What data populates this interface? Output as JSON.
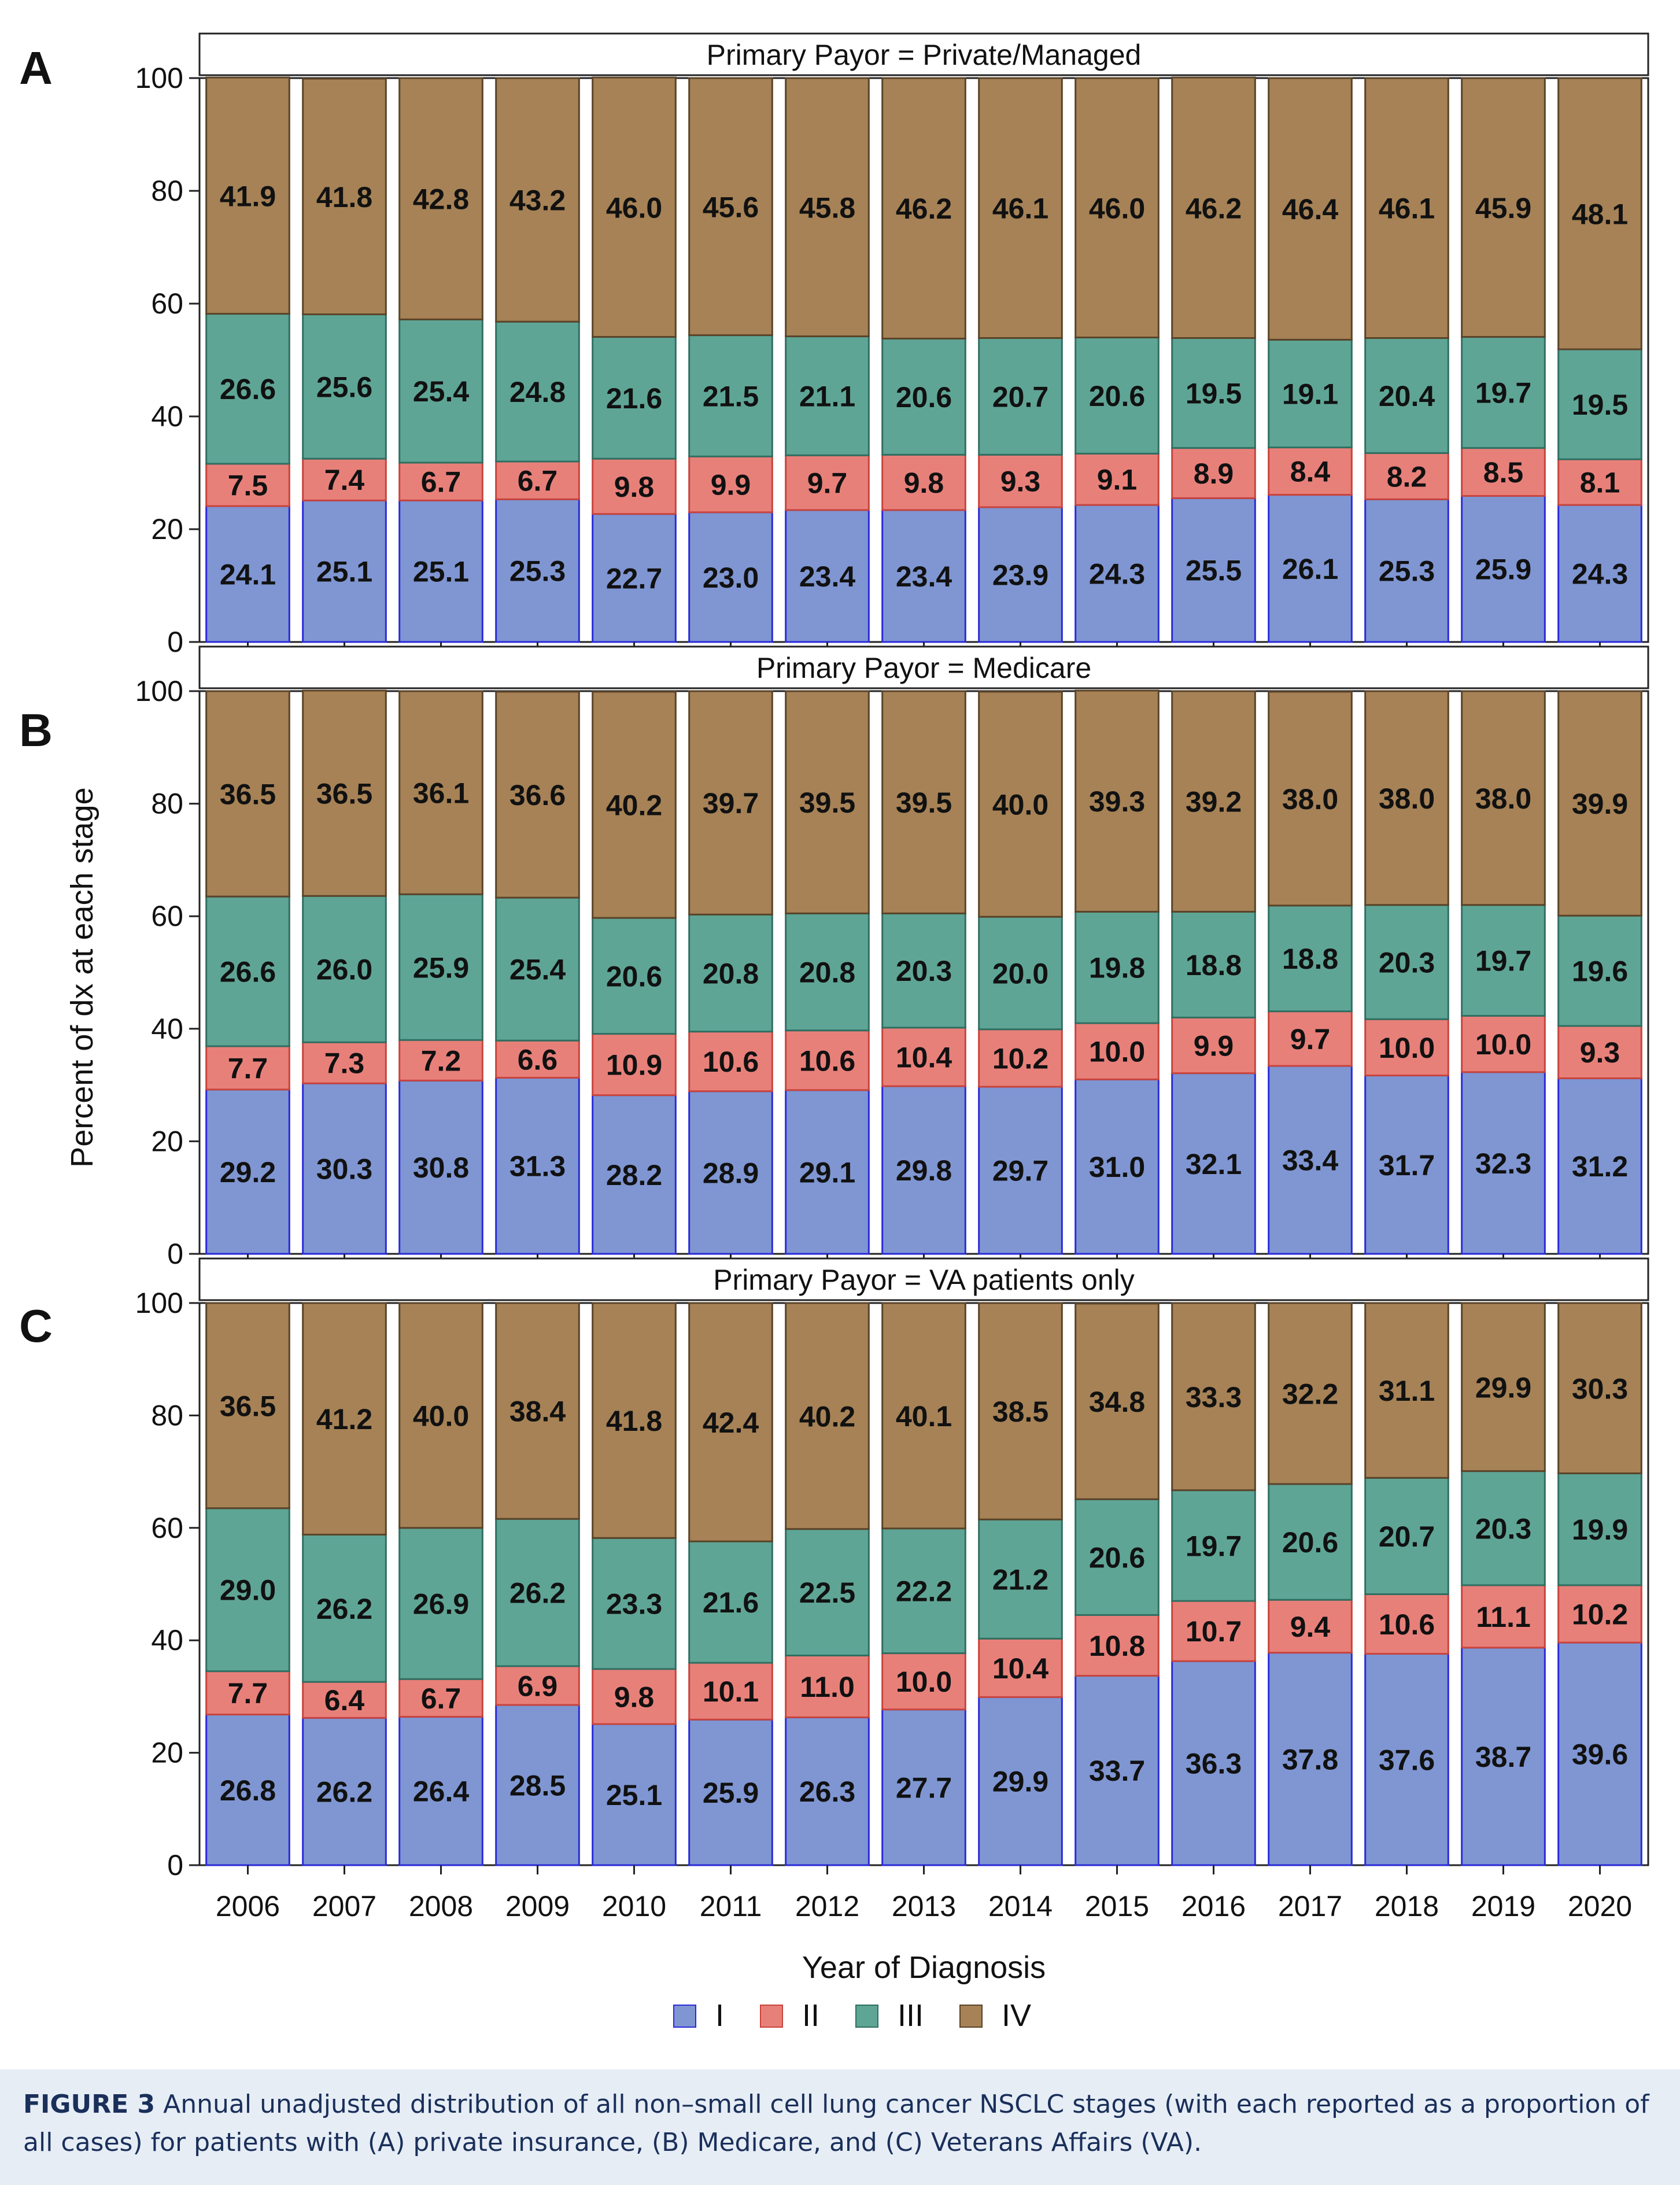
{
  "caption": {
    "label": "FIGURE 3",
    "text": "Annual unadjusted distribution of all non–small cell lung cancer NSCLC stages (with each reported as a proportion of all cases) for patients with (A) private insurance, (B) Medicare, and (C) Veterans Affairs (VA)."
  },
  "chart_data": {
    "type": "bar",
    "stacked": true,
    "categories": [
      "2006",
      "2007",
      "2008",
      "2009",
      "2010",
      "2011",
      "2012",
      "2013",
      "2014",
      "2015",
      "2016",
      "2017",
      "2018",
      "2019",
      "2020"
    ],
    "xlabel": "Year of Diagnosis",
    "ylabel": "Percent of dx at each stage",
    "ylim": [
      0,
      100
    ],
    "yticks": [
      0,
      20,
      40,
      60,
      80,
      100
    ],
    "legend_position": "bottom",
    "legend": [
      {
        "name": "I",
        "color": "#7f96d2"
      },
      {
        "name": "II",
        "color": "#e8807a"
      },
      {
        "name": "III",
        "color": "#5fa596"
      },
      {
        "name": "IV",
        "color": "#a68256"
      }
    ],
    "panels": [
      {
        "letter": "A",
        "strip": "Primary Payor = Private/Managed",
        "series": [
          {
            "name": "I",
            "values": [
              24.1,
              25.1,
              25.1,
              25.3,
              22.7,
              23.0,
              23.4,
              23.4,
              23.9,
              24.3,
              25.5,
              26.1,
              25.3,
              25.9,
              24.3
            ]
          },
          {
            "name": "II",
            "values": [
              7.5,
              7.4,
              6.7,
              6.7,
              9.8,
              9.9,
              9.7,
              9.8,
              9.3,
              9.1,
              8.9,
              8.4,
              8.2,
              8.5,
              8.1
            ]
          },
          {
            "name": "III",
            "values": [
              26.6,
              25.6,
              25.4,
              24.8,
              21.6,
              21.5,
              21.1,
              20.6,
              20.7,
              20.6,
              19.5,
              19.1,
              20.4,
              19.7,
              19.5
            ]
          },
          {
            "name": "IV",
            "values": [
              41.9,
              41.8,
              42.8,
              43.2,
              46.0,
              45.6,
              45.8,
              46.2,
              46.1,
              46.0,
              46.2,
              46.4,
              46.1,
              45.9,
              48.1
            ]
          }
        ]
      },
      {
        "letter": "B",
        "strip": "Primary Payor = Medicare",
        "series": [
          {
            "name": "I",
            "values": [
              29.2,
              30.3,
              30.8,
              31.3,
              28.2,
              28.9,
              29.1,
              29.8,
              29.7,
              31.0,
              32.1,
              33.4,
              31.7,
              32.3,
              31.2
            ]
          },
          {
            "name": "II",
            "values": [
              7.7,
              7.3,
              7.2,
              6.6,
              10.9,
              10.6,
              10.6,
              10.4,
              10.2,
              10.0,
              9.9,
              9.7,
              10.0,
              10.0,
              9.3
            ]
          },
          {
            "name": "III",
            "values": [
              26.6,
              26.0,
              25.9,
              25.4,
              20.6,
              20.8,
              20.8,
              20.3,
              20.0,
              19.8,
              18.8,
              18.8,
              20.3,
              19.7,
              19.6
            ]
          },
          {
            "name": "IV",
            "values": [
              36.5,
              36.5,
              36.1,
              36.6,
              40.2,
              39.7,
              39.5,
              39.5,
              40.0,
              39.3,
              39.2,
              38.0,
              38.0,
              38.0,
              39.9
            ]
          }
        ]
      },
      {
        "letter": "C",
        "strip": "Primary Payor = VA patients only",
        "series": [
          {
            "name": "I",
            "values": [
              26.8,
              26.2,
              26.4,
              28.5,
              25.1,
              25.9,
              26.3,
              27.7,
              29.9,
              33.7,
              36.3,
              37.8,
              37.6,
              38.7,
              39.6
            ]
          },
          {
            "name": "II",
            "values": [
              7.7,
              6.4,
              6.7,
              6.9,
              9.8,
              10.1,
              11.0,
              10.0,
              10.4,
              10.8,
              10.7,
              9.4,
              10.6,
              11.1,
              10.2
            ]
          },
          {
            "name": "III",
            "values": [
              29.0,
              26.2,
              26.9,
              26.2,
              23.3,
              21.6,
              22.5,
              22.2,
              21.2,
              20.6,
              19.7,
              20.6,
              20.7,
              20.3,
              19.9
            ]
          },
          {
            "name": "IV",
            "values": [
              36.5,
              41.2,
              40.0,
              38.4,
              41.8,
              42.4,
              40.2,
              40.1,
              38.5,
              34.8,
              33.3,
              32.2,
              31.1,
              29.9,
              30.3
            ]
          }
        ]
      }
    ]
  }
}
